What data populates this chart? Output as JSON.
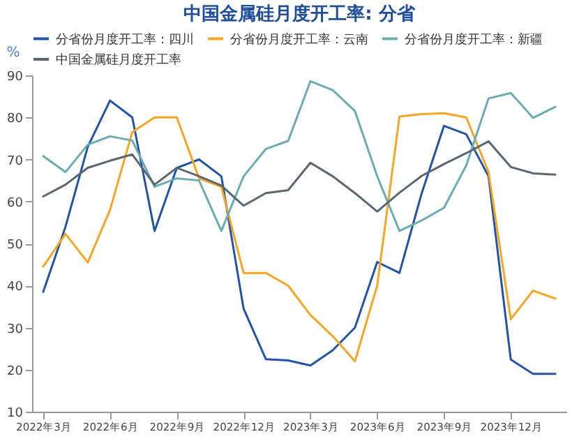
{
  "chart_data": {
    "type": "line",
    "title": "中国金属硅月度开工率: 分省",
    "ylabel": "%",
    "categories": [
      "2022年3月",
      null,
      null,
      "2022年6月",
      null,
      null,
      "2022年9月",
      null,
      null,
      "2022年12月",
      null,
      null,
      "2023年3月",
      null,
      null,
      "2023年6月",
      null,
      null,
      "2023年9月",
      null,
      null,
      "2023年12月",
      null,
      null
    ],
    "series": [
      {
        "name": "分省份月度开工率：四川",
        "color": "#2353a8",
        "values": [
          38.5,
          54,
          73,
          84,
          80,
          53,
          68,
          70,
          66,
          34.5,
          22.5,
          22.2,
          21,
          24.6,
          30,
          45.6,
          43,
          62,
          78,
          76,
          66,
          22.4,
          19,
          19
        ]
      },
      {
        "name": "分省份月度开工率：云南",
        "color": "#f5a623",
        "values": [
          44.5,
          52.3,
          45.5,
          58,
          76.5,
          80,
          80,
          65.5,
          63.5,
          43,
          43,
          40,
          33,
          28,
          22,
          40,
          80.2,
          80.8,
          81,
          80,
          67,
          32,
          38.8,
          36.9
        ]
      },
      {
        "name": "分省份月度开工率：新疆",
        "color": "#6aacb0",
        "values": [
          70.8,
          67,
          73.5,
          75.5,
          74.5,
          63.5,
          65.5,
          65,
          53,
          66,
          72.5,
          74.4,
          88.6,
          86.5,
          81.5,
          66,
          53,
          55.5,
          58.5,
          68.6,
          84.5,
          85.8,
          79.9,
          82.5
        ]
      },
      {
        "name": "中国金属硅月度开工率",
        "color": "#5a6670",
        "values": [
          61.2,
          64,
          68,
          69.7,
          71.2,
          64,
          68,
          66,
          63.8,
          59,
          62,
          62.7,
          69.2,
          66,
          62,
          57.6,
          62.1,
          66.1,
          68.9,
          71.5,
          74.3,
          68.2,
          66.7,
          66.4
        ]
      }
    ],
    "ylim": [
      10,
      90
    ],
    "yticks": [
      10,
      20,
      30,
      40,
      50,
      60,
      70,
      80,
      90
    ],
    "grid": false,
    "legend": "top",
    "marker": "none",
    "line_style": "solid"
  }
}
